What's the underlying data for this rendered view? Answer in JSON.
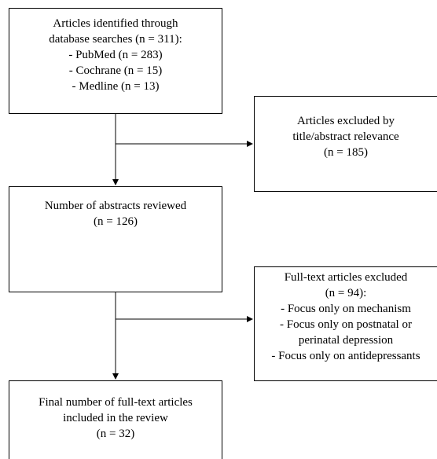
{
  "diagram": {
    "search_box": {
      "lines": [
        "Articles identified through",
        "database searches (n = 311):",
        "- PubMed (n = 283)",
        "- Cochrane (n = 15)",
        "- Medline (n = 13)"
      ]
    },
    "excluded_title_box": {
      "lines": [
        "Articles excluded by",
        "title/abstract relevance",
        "(n = 185)"
      ]
    },
    "abstracts_box": {
      "lines": [
        "Number of abstracts reviewed",
        "(n = 126)"
      ]
    },
    "excluded_fulltext_box": {
      "lines": [
        "Full-text articles excluded",
        "(n = 94):",
        "- Focus only on mechanism",
        "- Focus only on postnatal or",
        "perinatal depression",
        "- Focus only on antidepressants"
      ]
    },
    "final_box": {
      "lines": [
        "Final number of full-text articles",
        "included in the review",
        "(n = 32)"
      ]
    },
    "colors": {
      "stroke": "#000000",
      "background": "#ffffff",
      "text": "#000000"
    }
  }
}
